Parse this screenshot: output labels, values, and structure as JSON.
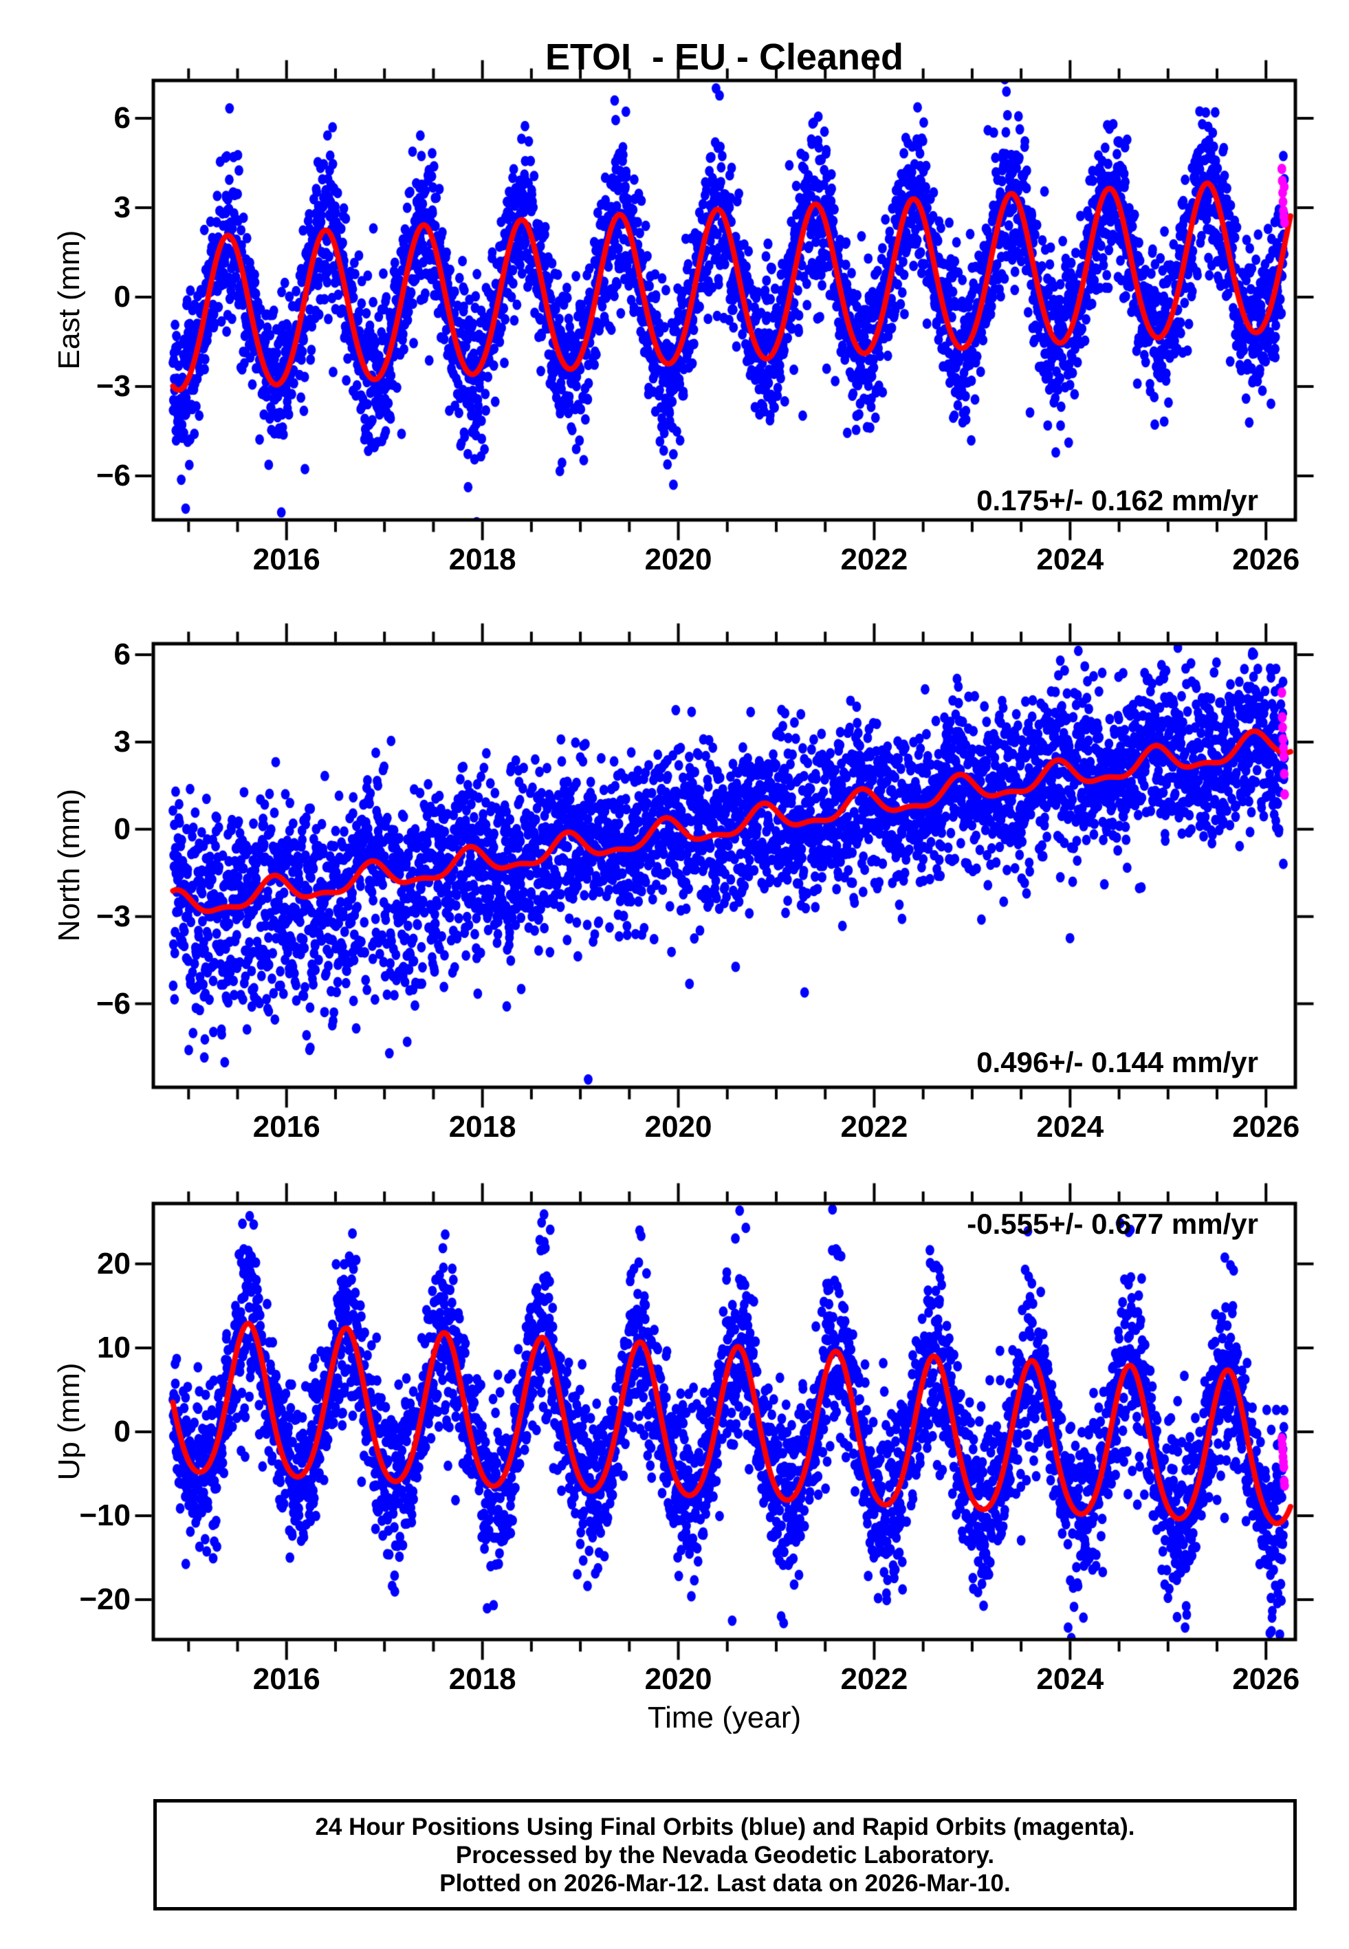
{
  "title": "ETOI  - EU - Cleaned",
  "colors": {
    "final_points": "#0000ff",
    "rapid_points": "#ff00ff",
    "fit_line": "#ff0000",
    "axes": "#000000",
    "background": "#ffffff"
  },
  "xaxis": {
    "label": "Time (year)",
    "xlim": [
      2014.64,
      2026.3
    ],
    "major_ticks": [
      2016,
      2018,
      2020,
      2022,
      2024,
      2026
    ],
    "minor_tick_step": 0.5,
    "data_start": 2014.84,
    "data_end": 2026.19,
    "rapid_start": 2026.162
  },
  "caption": {
    "lines": [
      "24 Hour Positions Using Final Orbits (blue) and Rapid Orbits (magenta).",
      "Processed by the Nevada Geodetic Laboratory.",
      "Plotted on 2026-Mar-12. Last data on 2026-Mar-10."
    ]
  },
  "chart_data": [
    {
      "type": "scatter",
      "component": "East",
      "ylabel": "East (mm)",
      "rate_label": "0.175+/- 0.162 mm/yr",
      "rate_label_position": "bottom-right",
      "ylim": [
        -7.48,
        7.27
      ],
      "yticks": [
        -6,
        -3,
        0,
        3,
        6
      ],
      "model": {
        "intercept_2015_mm": -0.7,
        "slope_mm_per_yr": 0.175,
        "annual_amp_mm": 2.55,
        "annual_peak_year_frac": 0.4,
        "semiannual_amp_mm": 0.15,
        "semiannual_peak_year_frac": 0.4
      },
      "scatter": {
        "base_sd_mm": 1.05,
        "seasonal_sd_factor": 0.38,
        "outlier_prob": 0.02,
        "outlier_sd_mm": 2.0,
        "outlier_bias_mm": -1.2,
        "seed": 101
      },
      "rapid_values_mm": [
        4.3,
        3.9,
        3.5,
        3.2,
        2.9,
        2.7,
        3.7,
        2.5
      ],
      "extra_points": [
        {
          "t": 2014.97,
          "v": -7.1
        },
        {
          "t": 2019.95,
          "v": -6.3
        },
        {
          "t": 2023.35,
          "v": 6.9
        },
        {
          "t": 2019.35,
          "v": 6.6
        }
      ]
    },
    {
      "type": "scatter",
      "component": "North",
      "ylabel": "North (mm)",
      "rate_label": "0.496+/- 0.144 mm/yr",
      "rate_label_position": "bottom-right",
      "ylim": [
        -8.87,
        6.38
      ],
      "yticks": [
        -6,
        -3,
        0,
        3,
        6
      ],
      "model": {
        "intercept_2015_mm": -2.62,
        "slope_mm_per_yr": 0.496,
        "annual_amp_mm": 0.42,
        "annual_peak_year_frac": 0.87,
        "semiannual_amp_mm": 0.18,
        "semiannual_peak_year_frac": 0.37
      },
      "scatter": {
        "base_sd_mm": 1.4,
        "seasonal_sd_factor": 0.0,
        "outlier_prob": 0.03,
        "outlier_sd_mm": 1.6,
        "outlier_bias_mm": -0.9,
        "early_negative_mult": 1.5,
        "early_until": 2018,
        "seed": 202
      },
      "rapid_values_mm": [
        4.7,
        3.85,
        3.5,
        3.1,
        2.8,
        2.5,
        1.9,
        1.2
      ],
      "extra_points": [
        {
          "t": 2019.08,
          "v": -8.6
        },
        {
          "t": 2017.05,
          "v": -7.7
        },
        {
          "t": 2023.9,
          "v": 5.8
        },
        {
          "t": 2024.15,
          "v": 5.6
        }
      ]
    },
    {
      "type": "scatter",
      "component": "Up",
      "ylabel": "Up (mm)",
      "rate_label": "-0.555+/- 0.677 mm/yr",
      "rate_label_position": "top-right",
      "ylim": [
        -24.75,
        27.2
      ],
      "yticks": [
        -20,
        -10,
        0,
        10,
        20
      ],
      "model": {
        "intercept_2015_mm": 3.25,
        "slope_mm_per_yr": -0.555,
        "annual_amp_mm": 9.0,
        "annual_peak_year_frac": 0.61,
        "semiannual_amp_mm": 1.0,
        "semiannual_peak_year_frac": 0.61
      },
      "scatter": {
        "base_sd_mm": 3.6,
        "seasonal_sd_factor": 0.5,
        "outlier_prob": 0.03,
        "outlier_sd_mm": 5.5,
        "outlier_bias_mm": 0,
        "seed": 303
      },
      "rapid_values_mm": [
        -0.8,
        -1.5,
        -2.2,
        -3.0,
        -3.6,
        -4.2,
        -5.9,
        -6.4
      ],
      "extra_points": [
        {
          "t": 2020.55,
          "v": -22.5
        },
        {
          "t": 2015.55,
          "v": 24.8
        },
        {
          "t": 2017.62,
          "v": 23.5
        },
        {
          "t": 2021.05,
          "v": -22.0
        }
      ]
    }
  ]
}
